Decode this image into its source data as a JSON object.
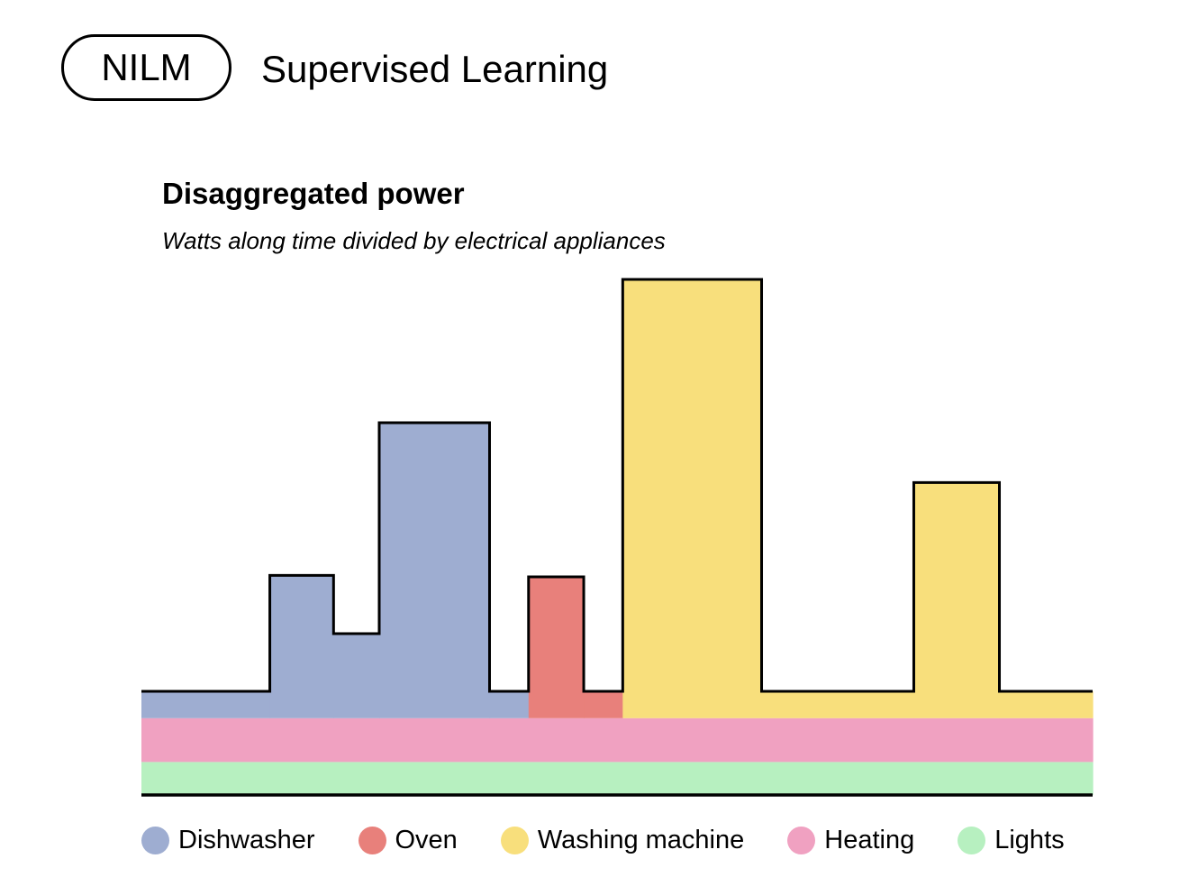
{
  "header": {
    "badge": "NILM",
    "title": "Supervised Learning"
  },
  "chart_data": {
    "type": "area",
    "title": "Disaggregated power",
    "subtitle": "Watts along time divided by electrical appliances",
    "xlabel": "",
    "ylabel": "",
    "grid": false,
    "legend_position": "bottom",
    "axes_visible": false,
    "note": "Stacked step chart; no numeric axis ticks are printed. Values are relative power levels estimated from the drawing.",
    "x_range": [
      0,
      100
    ],
    "y_range": [
      0,
      100
    ],
    "layers": [
      {
        "name": "Lights",
        "color": "#b7f0c0",
        "stroke": false,
        "steps": [
          [
            0,
            100,
            0,
            6.4
          ]
        ]
      },
      {
        "name": "Heating",
        "color": "#f0a1c1",
        "stroke": false,
        "steps": [
          [
            0,
            100,
            6.4,
            14.9
          ]
        ]
      },
      {
        "name": "Dishwasher",
        "color": "#9eadd1",
        "stroke": true,
        "steps": [
          [
            0,
            13.5,
            14.9,
            20.1
          ],
          [
            13.5,
            20.2,
            14.9,
            42.6
          ],
          [
            20.2,
            25.0,
            14.9,
            31.3
          ],
          [
            25.0,
            36.6,
            14.9,
            72.2
          ],
          [
            36.6,
            40.7,
            14.9,
            20.1
          ]
        ]
      },
      {
        "name": "Oven",
        "color": "#e8807b",
        "stroke": true,
        "steps": [
          [
            40.7,
            46.5,
            14.9,
            42.3
          ],
          [
            46.5,
            50.6,
            14.9,
            20.1
          ]
        ]
      },
      {
        "name": "Washing machine",
        "color": "#f8df7c",
        "stroke": true,
        "steps": [
          [
            50.6,
            65.2,
            14.9,
            100
          ],
          [
            65.2,
            81.2,
            14.9,
            20.1
          ],
          [
            81.2,
            90.2,
            14.9,
            60.6
          ],
          [
            90.2,
            100,
            14.9,
            20.1
          ]
        ]
      }
    ],
    "series": [
      {
        "name": "Dishwasher",
        "color": "#9eadd1"
      },
      {
        "name": "Oven",
        "color": "#e8807b"
      },
      {
        "name": "Washing machine",
        "color": "#f8df7c"
      },
      {
        "name": "Heating",
        "color": "#f0a1c1"
      },
      {
        "name": "Lights",
        "color": "#b7f0c0"
      }
    ]
  }
}
